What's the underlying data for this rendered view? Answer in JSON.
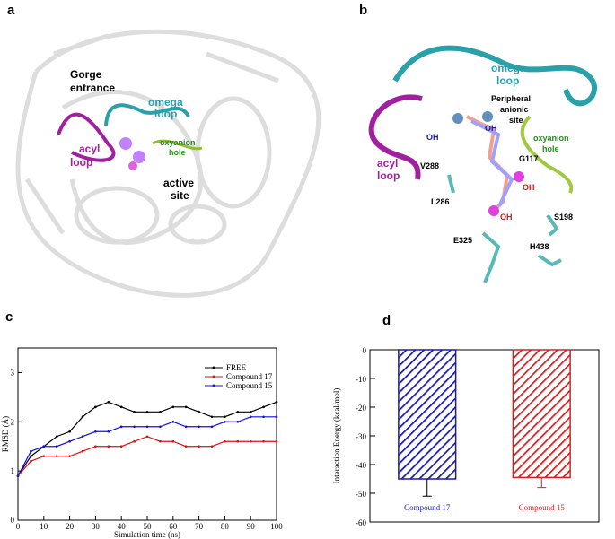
{
  "panel_a": {
    "label": "a",
    "gorge": [
      "Gorge",
      "entrance"
    ],
    "omega": [
      "omega",
      "loop"
    ],
    "oxyanion": [
      "oxyanion",
      "hole"
    ],
    "acyl": [
      "acyl",
      "loop"
    ],
    "active": [
      "active",
      "site"
    ]
  },
  "panel_b": {
    "label": "b",
    "omega": [
      "omega",
      "loop"
    ],
    "peripheral": [
      "Peripheral",
      "anionic",
      "site"
    ],
    "oxyanion": [
      "oxyanion",
      "hole"
    ],
    "acyl": [
      "acyl",
      "loop"
    ],
    "residues": [
      "V288",
      "L286",
      "G117",
      "S198",
      "E325",
      "H438"
    ],
    "oh": [
      "OH",
      "OH",
      "OH",
      "OH"
    ]
  },
  "chart_data": [
    {
      "type": "line",
      "panel": "c",
      "xlabel": "Simulation time (ns)",
      "ylabel": "RMSD (Å)",
      "xlim": [
        0,
        100
      ],
      "ylim": [
        0,
        3.5
      ],
      "xticks": [
        0,
        10,
        20,
        30,
        40,
        50,
        60,
        70,
        80,
        90,
        100
      ],
      "yticks": [
        0,
        1,
        2,
        3
      ],
      "x": [
        0,
        5,
        10,
        15,
        20,
        25,
        30,
        35,
        40,
        45,
        50,
        55,
        60,
        65,
        70,
        75,
        80,
        85,
        90,
        95,
        100
      ],
      "series": [
        {
          "name": "FREE",
          "color": "#000000",
          "values": [
            0.9,
            1.3,
            1.5,
            1.7,
            1.8,
            2.1,
            2.3,
            2.4,
            2.3,
            2.2,
            2.2,
            2.2,
            2.3,
            2.3,
            2.2,
            2.1,
            2.1,
            2.2,
            2.2,
            2.3,
            2.4
          ]
        },
        {
          "name": "Compound 17",
          "color": "#e01010",
          "values": [
            0.9,
            1.2,
            1.3,
            1.3,
            1.3,
            1.4,
            1.5,
            1.5,
            1.5,
            1.6,
            1.7,
            1.6,
            1.6,
            1.5,
            1.5,
            1.5,
            1.6,
            1.6,
            1.6,
            1.6,
            1.6
          ]
        },
        {
          "name": "Compound 15",
          "color": "#1010e0",
          "values": [
            0.9,
            1.4,
            1.5,
            1.5,
            1.6,
            1.7,
            1.8,
            1.8,
            1.9,
            1.9,
            1.9,
            1.9,
            2.0,
            1.9,
            1.9,
            1.9,
            2.0,
            2.0,
            2.1,
            2.1,
            2.1
          ]
        }
      ]
    },
    {
      "type": "bar",
      "panel": "d",
      "ylabel": "Interaction Energy (kcal/mol)",
      "ylim": [
        -60,
        0
      ],
      "yticks": [
        0,
        -10,
        -20,
        -30,
        -40,
        -50,
        -60
      ],
      "categories": [
        "Compound 17",
        "Compound 15"
      ],
      "values": [
        -45,
        -44.5
      ],
      "errors": [
        6,
        3.5
      ],
      "colors": [
        "#1a1aa8",
        "#d62020"
      ]
    }
  ]
}
